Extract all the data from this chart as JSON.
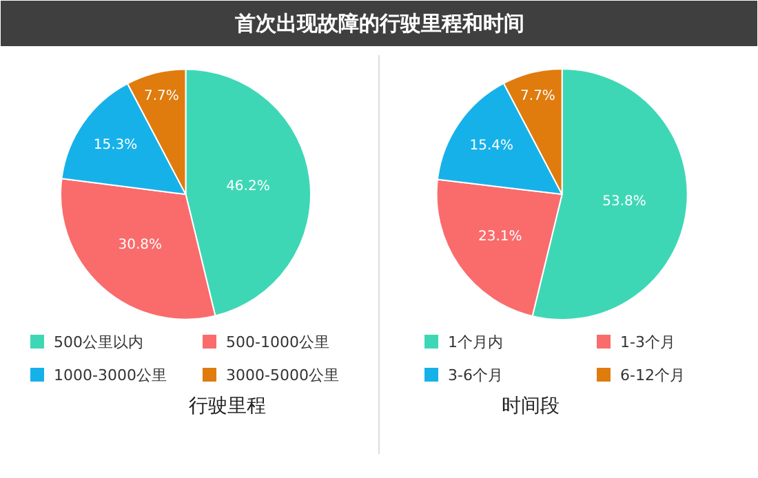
{
  "chart_data": [
    {
      "type": "pie",
      "title": "首次出现故障的行驶里程和时间",
      "xlabel": "行驶里程",
      "categories": [
        "500公里以内",
        "500-1000公里",
        "1000-3000公里",
        "3000-5000公里"
      ],
      "values": [
        46.2,
        30.8,
        15.3,
        7.7
      ],
      "value_labels": [
        "46.2%",
        "30.8%",
        "15.3%",
        "7.7%"
      ],
      "colors": [
        "#3ed7b6",
        "#fa6b6c",
        "#17b1ea",
        "#e07b0e"
      ],
      "legend": "bottom"
    },
    {
      "type": "pie",
      "xlabel": "时间段",
      "categories": [
        "1个月内",
        "1-3个月",
        "3-6个月",
        "6-12个月"
      ],
      "values": [
        53.8,
        23.1,
        15.4,
        7.7
      ],
      "value_labels": [
        "53.8%",
        "23.1%",
        "15.4%",
        "7.7%"
      ],
      "colors": [
        "#3ed7b6",
        "#fa6b6c",
        "#17b1ea",
        "#e07b0e"
      ],
      "legend": "bottom"
    }
  ]
}
